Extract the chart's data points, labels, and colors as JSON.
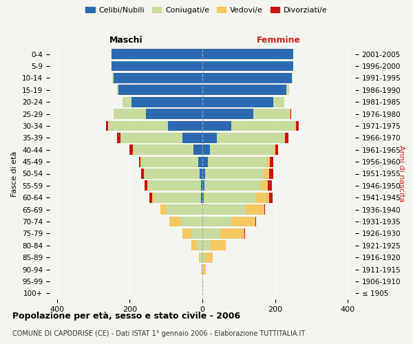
{
  "age_groups": [
    "100+",
    "95-99",
    "90-94",
    "85-89",
    "80-84",
    "75-79",
    "70-74",
    "65-69",
    "60-64",
    "55-59",
    "50-54",
    "45-49",
    "40-44",
    "35-39",
    "30-34",
    "25-29",
    "20-24",
    "15-19",
    "10-14",
    "5-9",
    "0-4"
  ],
  "birth_years": [
    "≤ 1905",
    "1906-1910",
    "1911-1915",
    "1916-1920",
    "1921-1925",
    "1926-1930",
    "1931-1935",
    "1936-1940",
    "1941-1945",
    "1946-1950",
    "1951-1955",
    "1956-1960",
    "1961-1965",
    "1966-1970",
    "1971-1975",
    "1976-1980",
    "1981-1985",
    "1986-1990",
    "1991-1995",
    "1996-2000",
    "2001-2005"
  ],
  "male_celibi": [
    0,
    0,
    0,
    0,
    0,
    0,
    0,
    0,
    3,
    3,
    8,
    12,
    25,
    55,
    95,
    155,
    195,
    230,
    245,
    250,
    250
  ],
  "male_coniugati": [
    0,
    0,
    2,
    5,
    15,
    30,
    60,
    100,
    130,
    145,
    150,
    155,
    165,
    170,
    165,
    90,
    25,
    5,
    2,
    0,
    0
  ],
  "male_vedovi": [
    0,
    0,
    1,
    5,
    15,
    25,
    30,
    15,
    5,
    3,
    3,
    3,
    2,
    0,
    0,
    0,
    0,
    0,
    0,
    0,
    0
  ],
  "male_divorziati": [
    0,
    0,
    0,
    0,
    0,
    0,
    0,
    0,
    8,
    8,
    8,
    5,
    8,
    10,
    5,
    0,
    0,
    0,
    0,
    0,
    0
  ],
  "female_celibi": [
    0,
    0,
    0,
    0,
    0,
    0,
    0,
    0,
    3,
    5,
    8,
    15,
    20,
    40,
    80,
    140,
    195,
    230,
    245,
    250,
    250
  ],
  "female_coniugati": [
    0,
    0,
    2,
    8,
    20,
    50,
    80,
    120,
    145,
    155,
    160,
    160,
    175,
    185,
    175,
    100,
    30,
    8,
    2,
    0,
    0
  ],
  "female_vedovi": [
    0,
    2,
    8,
    20,
    45,
    65,
    65,
    50,
    35,
    20,
    15,
    10,
    5,
    2,
    2,
    2,
    0,
    0,
    0,
    0,
    0
  ],
  "female_divorziati": [
    0,
    0,
    0,
    0,
    0,
    2,
    2,
    2,
    10,
    12,
    12,
    10,
    8,
    10,
    8,
    2,
    0,
    0,
    0,
    0,
    0
  ],
  "colors": {
    "celibi": "#2b6ab2",
    "coniugati": "#c8dba0",
    "vedovi": "#f5c862",
    "divorziati": "#cc1111"
  },
  "title": "Popolazione per età, sesso e stato civile - 2006",
  "subtitle": "COMUNE DI CAPODRISE (CE) - Dati ISTAT 1° gennaio 2006 - Elaborazione TUTTITALIA.IT",
  "xlabel_left": "Maschi",
  "xlabel_right": "Femmine",
  "ylabel_left": "Fasce di età",
  "ylabel_right": "Anni di nascita",
  "xlim": 420,
  "background_color": "#f5f5f0"
}
